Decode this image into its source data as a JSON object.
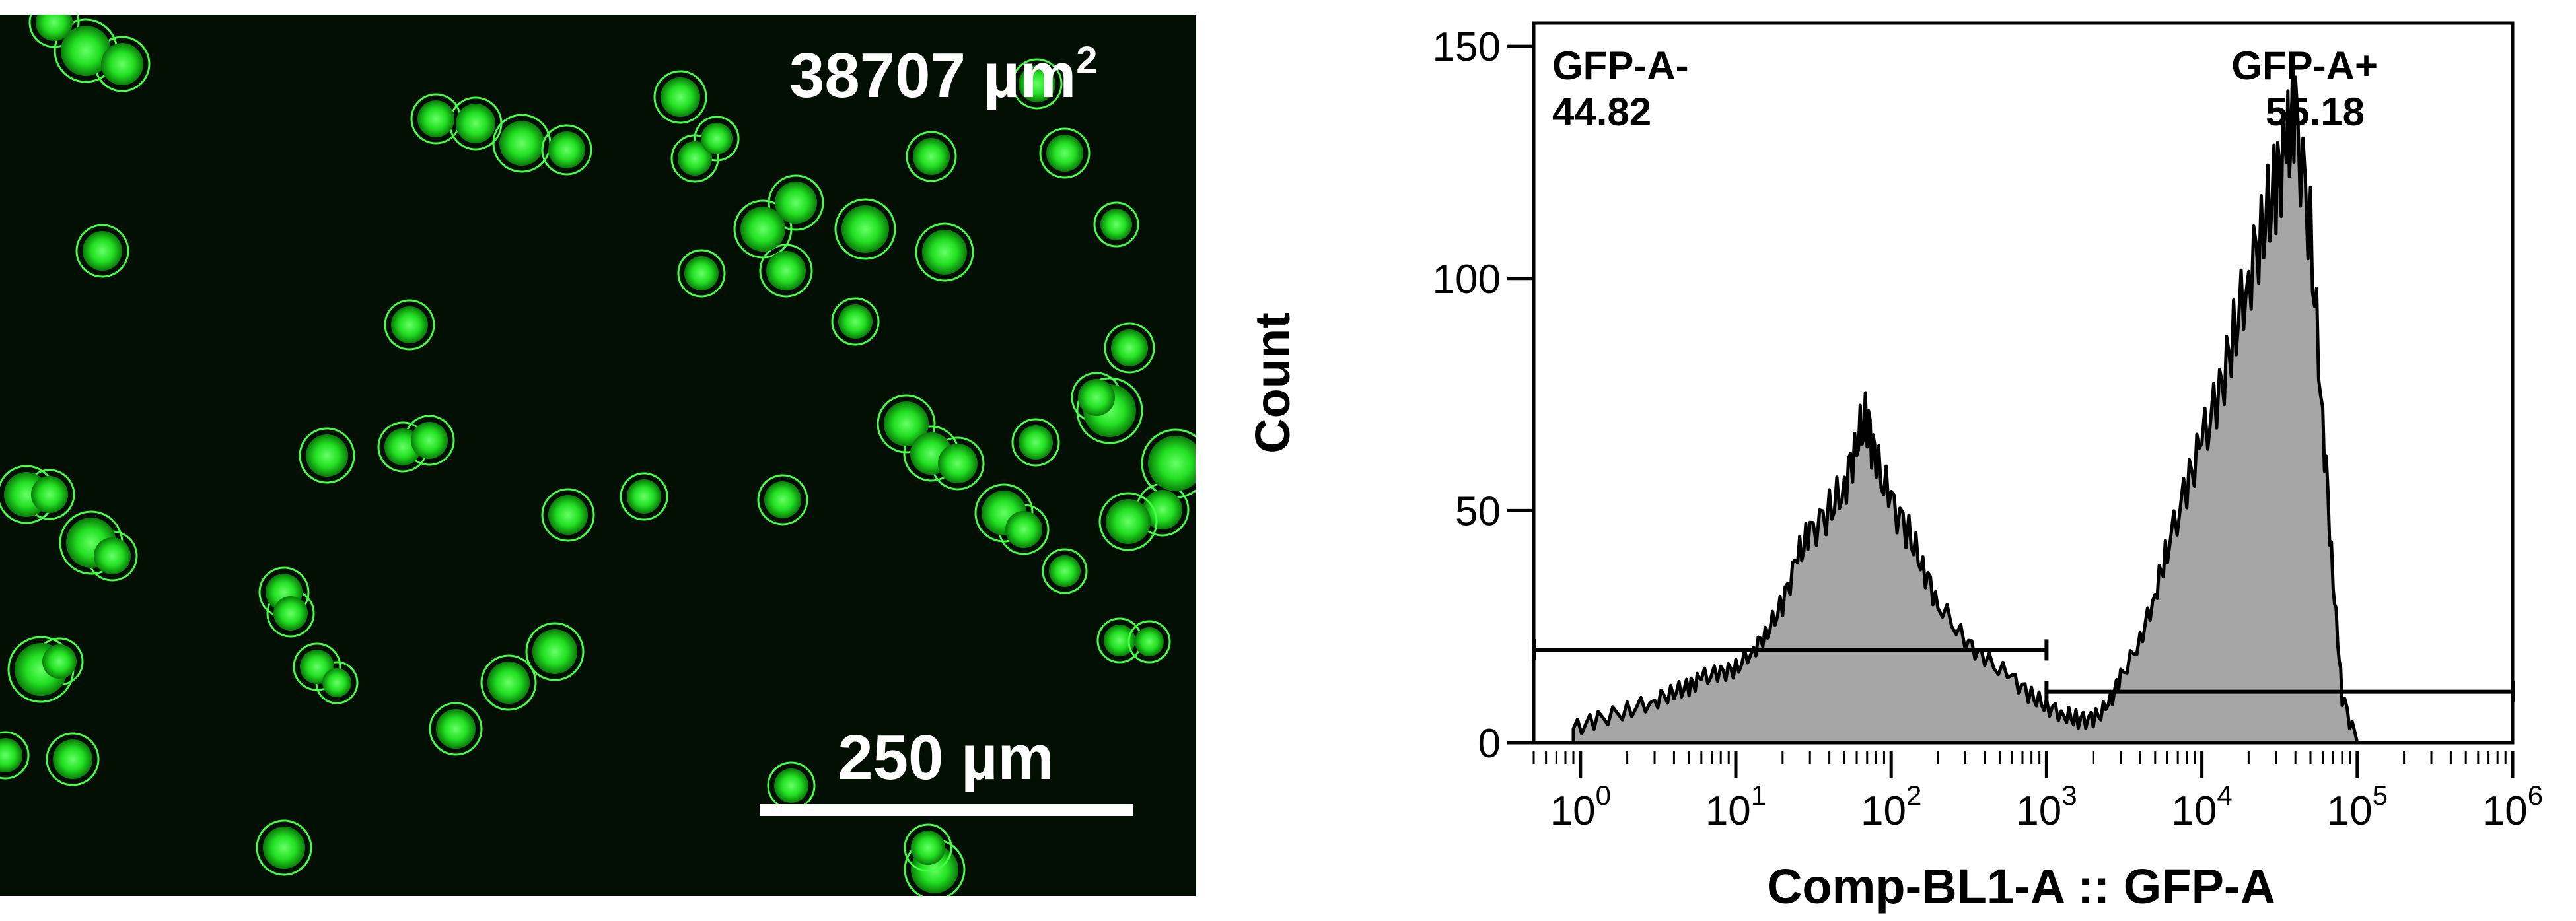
{
  "micrograph": {
    "area_value": "38707 µm",
    "area_exponent": "2",
    "scale_bar_label": "250 µm",
    "fluorescence_color": "#33ff33",
    "background_color": "#030f03"
  },
  "chart_data": {
    "type": "area",
    "xlabel": "Comp-BL1-A :: GFP-A",
    "ylabel": "Count",
    "x_scale": "log",
    "xlim": [
      0.5,
      1000000
    ],
    "ylim": [
      0,
      155
    ],
    "y_ticks": [
      0,
      50,
      100,
      150
    ],
    "x_ticks": [
      1,
      10,
      100,
      1000,
      10000,
      100000,
      1000000
    ],
    "x_tick_labels": [
      {
        "base": "10",
        "exp": "0"
      },
      {
        "base": "10",
        "exp": "1"
      },
      {
        "base": "10",
        "exp": "2"
      },
      {
        "base": "10",
        "exp": "3"
      },
      {
        "base": "10",
        "exp": "4"
      },
      {
        "base": "10",
        "exp": "5"
      },
      {
        "base": "10",
        "exp": "6"
      }
    ],
    "fill_color": "#a6a6a6",
    "series": [
      {
        "x": [
          0.9,
          1.3,
          2,
          3,
          4,
          5,
          6,
          8,
          10,
          13,
          16,
          20,
          25,
          30,
          40,
          50,
          60,
          70,
          80,
          100,
          130,
          160,
          200,
          300,
          400,
          600,
          800,
          1000,
          1300,
          1600,
          2000,
          2500,
          3000,
          4000,
          5000,
          6000,
          8000,
          10000,
          13000,
          16000,
          20000,
          25000,
          30000,
          35000,
          40000,
          50000,
          60000,
          70000,
          80000,
          100000
        ],
        "y": [
          3,
          5,
          7,
          9,
          11,
          12,
          14,
          15,
          16,
          20,
          24,
          30,
          40,
          45,
          50,
          55,
          65,
          70,
          60,
          52,
          45,
          38,
          30,
          22,
          18,
          14,
          10,
          8,
          6,
          5,
          5,
          8,
          14,
          22,
          32,
          42,
          55,
          65,
          75,
          88,
          100,
          112,
          120,
          128,
          135,
          110,
          70,
          35,
          10,
          0
        ]
      }
    ],
    "gates": [
      {
        "name": "GFP-A-",
        "percent": "44.82",
        "x_range": [
          0.5,
          1000
        ],
        "y_level": 20
      },
      {
        "name": "GFP-A+",
        "percent": "55.18",
        "x_range": [
          1000,
          1000000
        ],
        "y_level": 11
      }
    ]
  }
}
